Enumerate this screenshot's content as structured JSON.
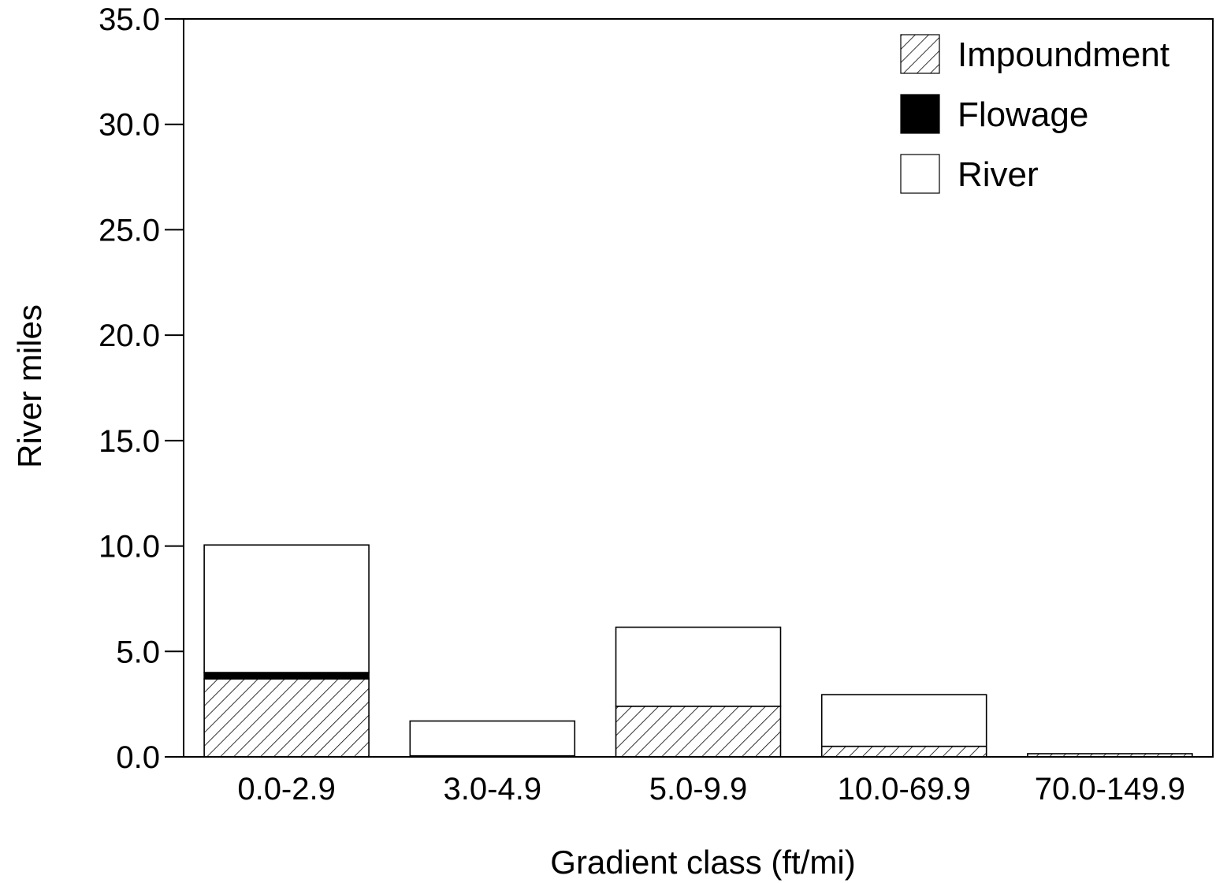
{
  "chart_data": {
    "type": "bar",
    "stacked": true,
    "xlabel": "Gradient class (ft/mi)",
    "ylabel": "River miles",
    "ylim": [
      0,
      35
    ],
    "yticks": [
      "0.0",
      "5.0",
      "10.0",
      "15.0",
      "20.0",
      "25.0",
      "30.0",
      "35.0"
    ],
    "ytick_values": [
      0,
      5,
      10,
      15,
      20,
      25,
      30,
      35
    ],
    "categories": [
      "0.0-2.9",
      "3.0-4.9",
      "5.0-9.9",
      "10.0-69.9",
      "70.0-149.9"
    ],
    "legend_position": "top-right",
    "grid": false,
    "series": [
      {
        "name": "Impoundment",
        "fill": "hatch",
        "color": "#000000",
        "values": [
          3.7,
          0.0,
          2.4,
          0.5,
          0.15
        ]
      },
      {
        "name": "Flowage",
        "fill": "solid",
        "color": "#000000",
        "values": [
          0.3,
          0.05,
          0.0,
          0.0,
          0.0
        ]
      },
      {
        "name": "River",
        "fill": "empty",
        "color": "#ffffff",
        "values": [
          6.05,
          1.65,
          3.75,
          2.45,
          0.0
        ]
      }
    ]
  }
}
